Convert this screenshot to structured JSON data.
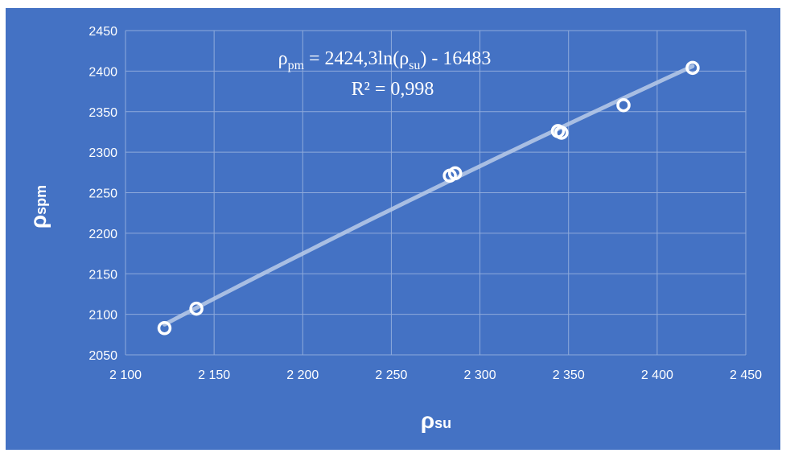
{
  "chart_data": {
    "type": "scatter",
    "title": "",
    "xlabel": "ρ",
    "xlabel_sub": "su",
    "ylabel": "ρ",
    "ylabel_sub": "spm",
    "xlim": [
      2100,
      2450
    ],
    "ylim": [
      2050,
      2450
    ],
    "x_ticks": [
      2100,
      2150,
      2200,
      2250,
      2300,
      2350,
      2400,
      2450
    ],
    "x_tick_labels": [
      "2 100",
      "2 150",
      "2 200",
      "2 250",
      "2 300",
      "2 350",
      "2 400",
      "2 450"
    ],
    "y_ticks": [
      2050,
      2100,
      2150,
      2200,
      2250,
      2300,
      2350,
      2400,
      2450
    ],
    "y_tick_labels": [
      "2050",
      "2100",
      "2150",
      "2200",
      "2250",
      "2300",
      "2350",
      "2400",
      "2450"
    ],
    "grid": true,
    "series": [
      {
        "points": [
          {
            "x": 2122,
            "y": 2083
          },
          {
            "x": 2140,
            "y": 2107
          },
          {
            "x": 2283,
            "y": 2271
          },
          {
            "x": 2286,
            "y": 2274
          },
          {
            "x": 2344,
            "y": 2326
          },
          {
            "x": 2346,
            "y": 2324
          },
          {
            "x": 2381,
            "y": 2358
          },
          {
            "x": 2420,
            "y": 2404
          }
        ]
      }
    ],
    "trendline": {
      "type": "logarithmic",
      "a": 2424.3,
      "b": -16483,
      "x_range": [
        2122,
        2420
      ]
    },
    "annotations": {
      "equation": {
        "rho": "ρ",
        "sub1": "pm",
        "mid": " = 2424,3ln(ρ",
        "sub2": "su",
        "end": ")  - 16483"
      },
      "r_squared": "R² = 0,998"
    }
  },
  "colors": {
    "background": "#4472c4",
    "gridline": "#8eaadb",
    "marker": "#ffffff",
    "trendline": "#b4c7e7",
    "text": "#ffffff"
  }
}
